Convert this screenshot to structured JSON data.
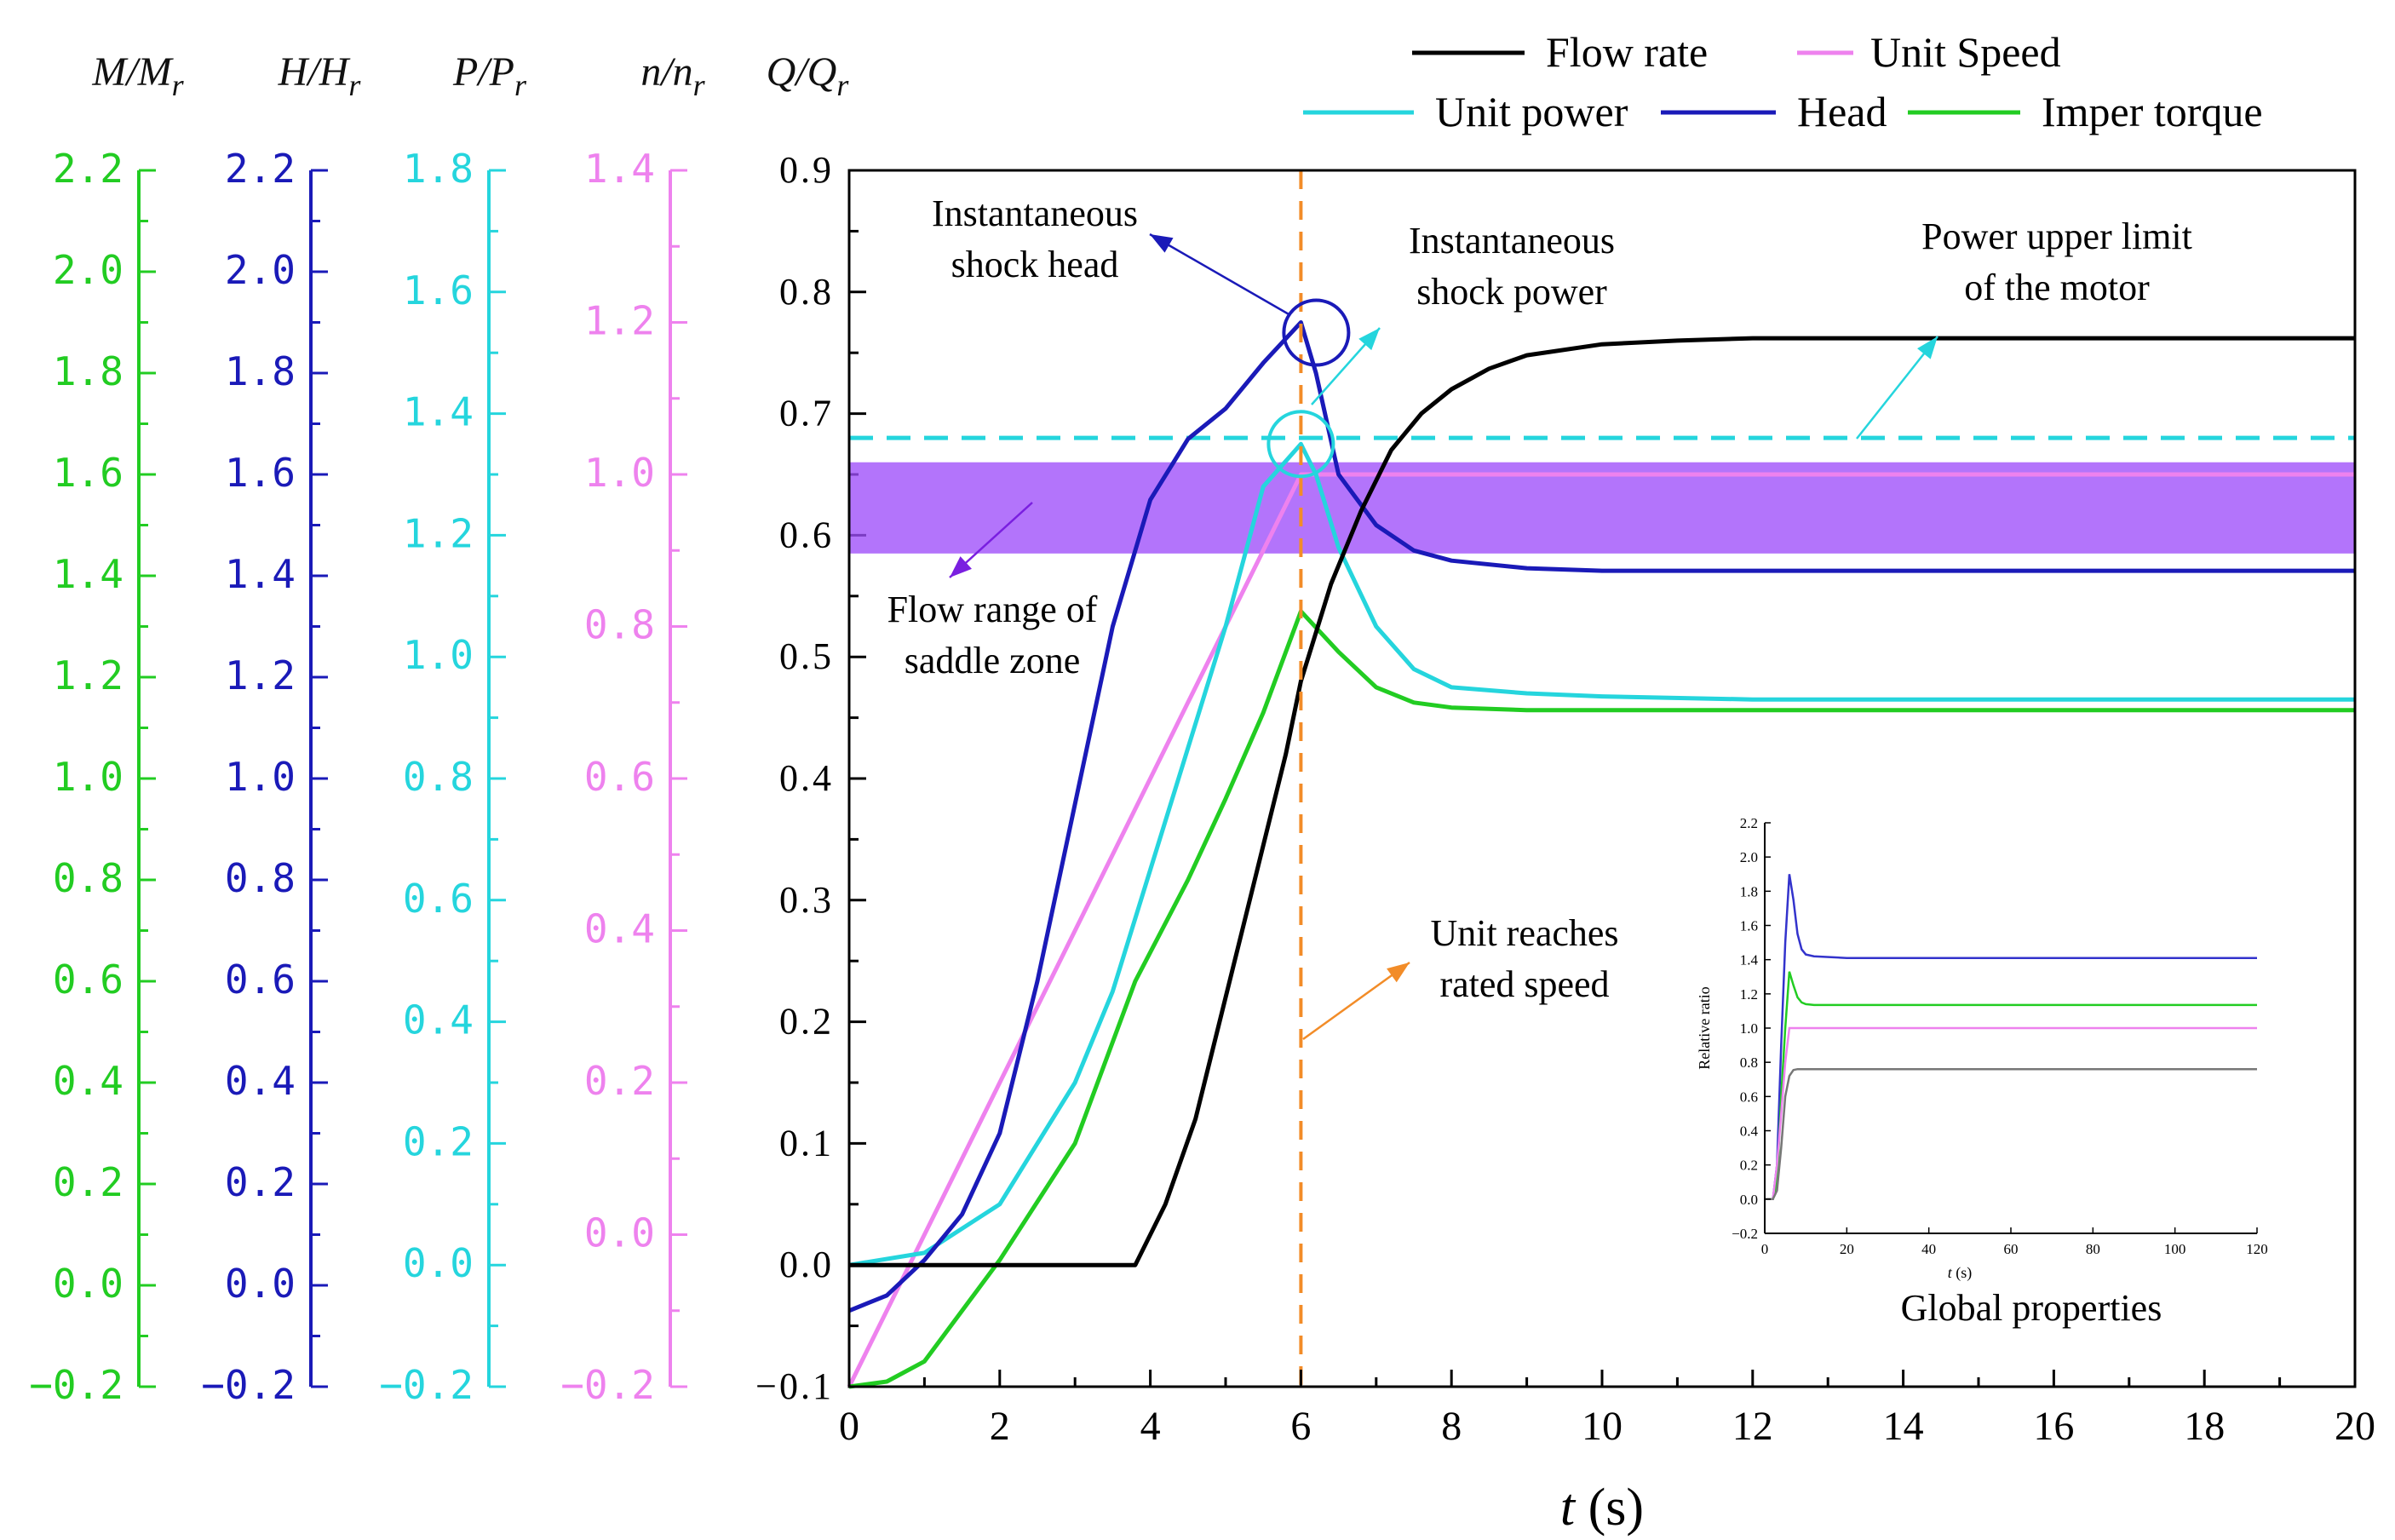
{
  "chart_data": {
    "type": "line",
    "xlabel_italic": "t",
    "xlabel_unit": " (s)",
    "x_ticks": [
      "0",
      "2",
      "4",
      "6",
      "8",
      "10",
      "12",
      "14",
      "16",
      "18",
      "20"
    ],
    "xlim": [
      0,
      20
    ],
    "axes": [
      {
        "id": "Q",
        "label_main": "Q/Q",
        "label_sub": "r",
        "color": "#000000",
        "ylim": [
          -0.1,
          0.9
        ],
        "ticks": [
          "-0.1",
          "0.0",
          "0.1",
          "0.2",
          "0.3",
          "0.4",
          "0.5",
          "0.6",
          "0.7",
          "0.8",
          "0.9"
        ]
      },
      {
        "id": "n",
        "label_main": "n/n",
        "label_sub": "r",
        "color": "#ee82ee",
        "ylim": [
          -0.2,
          1.4
        ],
        "ticks": [
          "-0.2",
          "0.0",
          "0.2",
          "0.4",
          "0.6",
          "0.8",
          "1.0",
          "1.2",
          "1.4"
        ]
      },
      {
        "id": "P",
        "label_main": "P/P",
        "label_sub": "r",
        "color": "#25d5dd",
        "ylim": [
          -0.2,
          1.8
        ],
        "ticks": [
          "-0.2",
          "0.0",
          "0.2",
          "0.4",
          "0.6",
          "0.8",
          "1.0",
          "1.2",
          "1.4",
          "1.6",
          "1.8"
        ]
      },
      {
        "id": "H",
        "label_main": "H/H",
        "label_sub": "r",
        "color": "#1a1ab8",
        "ylim": [
          -0.2,
          2.2
        ],
        "ticks": [
          "-0.2",
          "0.0",
          "0.2",
          "0.4",
          "0.6",
          "0.8",
          "1.0",
          "1.2",
          "1.4",
          "1.6",
          "1.8",
          "2.0",
          "2.2"
        ]
      },
      {
        "id": "M",
        "label_main": "M/M",
        "label_sub": "r",
        "color": "#22cc22",
        "ylim": [
          -0.2,
          2.2
        ],
        "ticks": [
          "-0.2",
          "0.0",
          "0.2",
          "0.4",
          "0.6",
          "0.8",
          "1.0",
          "1.2",
          "1.4",
          "1.6",
          "1.8",
          "2.0",
          "2.2"
        ]
      }
    ],
    "series": [
      {
        "name": "Flow rate",
        "axis": "Q",
        "color": "#000000",
        "x": [
          0,
          1,
          2,
          3,
          3.8,
          4.2,
          4.6,
          5,
          5.4,
          5.8,
          6,
          6.4,
          6.8,
          7.2,
          7.6,
          8,
          8.5,
          9,
          10,
          11,
          12,
          13,
          14,
          16,
          18,
          20
        ],
        "y": [
          0,
          0,
          0,
          0,
          0,
          0.05,
          0.12,
          0.22,
          0.32,
          0.42,
          0.48,
          0.56,
          0.62,
          0.67,
          0.7,
          0.72,
          0.737,
          0.748,
          0.757,
          0.76,
          0.762,
          0.762,
          0.762,
          0.762,
          0.762,
          0.762
        ]
      },
      {
        "name": "Unit Speed",
        "axis": "n",
        "color": "#ee82ee",
        "x": [
          0,
          6,
          6.3,
          7,
          20
        ],
        "y": [
          -0.2,
          1.0,
          1.0,
          1.0,
          1.0
        ]
      },
      {
        "name": "Unit power",
        "axis": "P",
        "color": "#25d5dd",
        "x": [
          0,
          1,
          2,
          3,
          3.5,
          4,
          4.5,
          5,
          5.5,
          6,
          6.2,
          6.5,
          7,
          7.5,
          8,
          9,
          10,
          12,
          14,
          17,
          20
        ],
        "y": [
          0,
          0.02,
          0.1,
          0.3,
          0.45,
          0.65,
          0.85,
          1.05,
          1.28,
          1.35,
          1.3,
          1.18,
          1.05,
          0.98,
          0.95,
          0.94,
          0.935,
          0.93,
          0.93,
          0.93,
          0.93
        ]
      },
      {
        "name": "Head",
        "axis": "H",
        "color": "#1a1ab8",
        "x": [
          0,
          0.5,
          1,
          1.5,
          2,
          2.5,
          3,
          3.5,
          4,
          4.5,
          5,
          5.5,
          6,
          6.2,
          6.5,
          7,
          7.5,
          8,
          9,
          10,
          12,
          15,
          20
        ],
        "y": [
          -0.05,
          -0.02,
          0.05,
          0.14,
          0.3,
          0.6,
          0.95,
          1.3,
          1.55,
          1.67,
          1.73,
          1.82,
          1.9,
          1.8,
          1.6,
          1.5,
          1.45,
          1.43,
          1.415,
          1.41,
          1.41,
          1.41,
          1.41
        ]
      },
      {
        "name": "Imper torque",
        "axis": "M",
        "color": "#22cc22",
        "x": [
          0,
          0.5,
          1,
          2,
          3,
          3.5,
          3.8,
          4.5,
          5,
          5.5,
          6,
          6.5,
          7,
          7.5,
          8,
          9,
          10,
          12,
          15,
          20
        ],
        "y": [
          -0.2,
          -0.19,
          -0.15,
          0.05,
          0.28,
          0.48,
          0.6,
          0.8,
          0.96,
          1.13,
          1.33,
          1.25,
          1.18,
          1.15,
          1.14,
          1.135,
          1.135,
          1.135,
          1.135,
          1.135
        ]
      }
    ],
    "power_upper_limit": 0.68,
    "saddle_zone": [
      0.585,
      0.66
    ],
    "rated_speed_time": 6,
    "legend": {
      "position": "top-right",
      "entries": [
        {
          "name": "Flow rate",
          "color": "#000000"
        },
        {
          "name": "Unit Speed",
          "color": "#ee82ee"
        },
        {
          "name": "Unit power",
          "color": "#25d5dd"
        },
        {
          "name": "Head",
          "color": "#1a1ab8"
        },
        {
          "name": "Imper torque",
          "color": "#22cc22"
        }
      ]
    },
    "annotations": {
      "shock_head": [
        "Instantaneous",
        "shock head"
      ],
      "shock_power": [
        "Instantaneous",
        "shock power"
      ],
      "power_limit": [
        "Power upper limit",
        "of the motor"
      ],
      "saddle": [
        "Flow range of",
        "saddle zone"
      ],
      "rated_speed": [
        "Unit reaches",
        "rated speed"
      ]
    },
    "inset": {
      "title": "Global properties",
      "ylabel": "Relative ratio",
      "xlabel_italic": "t",
      "xlabel_unit": " (s)",
      "xlim": [
        0,
        120
      ],
      "ylim": [
        -0.2,
        2.2
      ],
      "x_ticks": [
        "0",
        "20",
        "40",
        "60",
        "80",
        "100",
        "120"
      ],
      "y_ticks": [
        "-0.2",
        "0.0",
        "0.2",
        "0.4",
        "0.6",
        "0.8",
        "1.0",
        "1.2",
        "1.4",
        "1.6",
        "1.8",
        "2.0",
        "2.2"
      ],
      "series": [
        {
          "name": "Head",
          "color": "#3333cc",
          "x": [
            0,
            2,
            3,
            4,
            5,
            6,
            7,
            8,
            9,
            10,
            12,
            20,
            120
          ],
          "y": [
            0,
            0,
            0.2,
            0.9,
            1.5,
            1.9,
            1.75,
            1.55,
            1.46,
            1.43,
            1.42,
            1.41,
            1.41
          ]
        },
        {
          "name": "Imper torque",
          "color": "#22cc22",
          "x": [
            0,
            2,
            3,
            4,
            5,
            6,
            7,
            8,
            9,
            10,
            12,
            20,
            120
          ],
          "y": [
            0,
            0,
            0.1,
            0.6,
            1.0,
            1.33,
            1.25,
            1.18,
            1.15,
            1.14,
            1.135,
            1.135,
            1.135
          ]
        },
        {
          "name": "Unit Speed",
          "color": "#ee82ee",
          "x": [
            0,
            2,
            3,
            4,
            5,
            6,
            7,
            120
          ],
          "y": [
            0,
            0,
            0.2,
            0.5,
            0.8,
            1.0,
            1.0,
            1.0
          ]
        },
        {
          "name": "Flow rate",
          "color": "#777777",
          "x": [
            0,
            2,
            3,
            4,
            5,
            6,
            7,
            8,
            120
          ],
          "y": [
            0,
            0,
            0.05,
            0.3,
            0.6,
            0.72,
            0.755,
            0.76,
            0.76
          ]
        }
      ]
    }
  }
}
